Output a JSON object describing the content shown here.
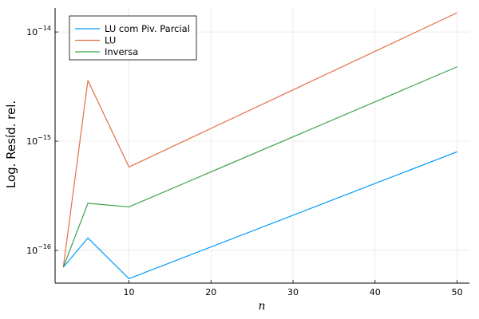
{
  "chart_data": {
    "type": "line",
    "title": "",
    "xlabel": "n",
    "ylabel": "Log. Resíd. rel.",
    "y_scale": "log",
    "grid": true,
    "legend_position": "top-left",
    "xlim": [
      1,
      51.5
    ],
    "ylim_exponent": [
      -16.3,
      -13.78
    ],
    "x_ticks": [
      10,
      20,
      30,
      40,
      50
    ],
    "y_ticks": [
      {
        "exp": -16,
        "base": "10",
        "sup": "−16"
      },
      {
        "exp": -15,
        "base": "10",
        "sup": "−15"
      },
      {
        "exp": -14,
        "base": "10",
        "sup": "−14"
      }
    ],
    "x": [
      2,
      5,
      10,
      50
    ],
    "series": [
      {
        "name": "LU com Piv. Parcial",
        "color": "#009AFA",
        "values": [
          7e-17,
          1.3e-16,
          5.5e-17,
          8e-16
        ]
      },
      {
        "name": "LU",
        "color": "#E26F46",
        "values": [
          7e-17,
          3.6e-15,
          5.8e-16,
          1.5e-14
        ]
      },
      {
        "name": "Inversa",
        "color": "#3DA44D",
        "values": [
          7e-17,
          2.7e-16,
          2.5e-16,
          4.8e-15
        ]
      }
    ]
  }
}
